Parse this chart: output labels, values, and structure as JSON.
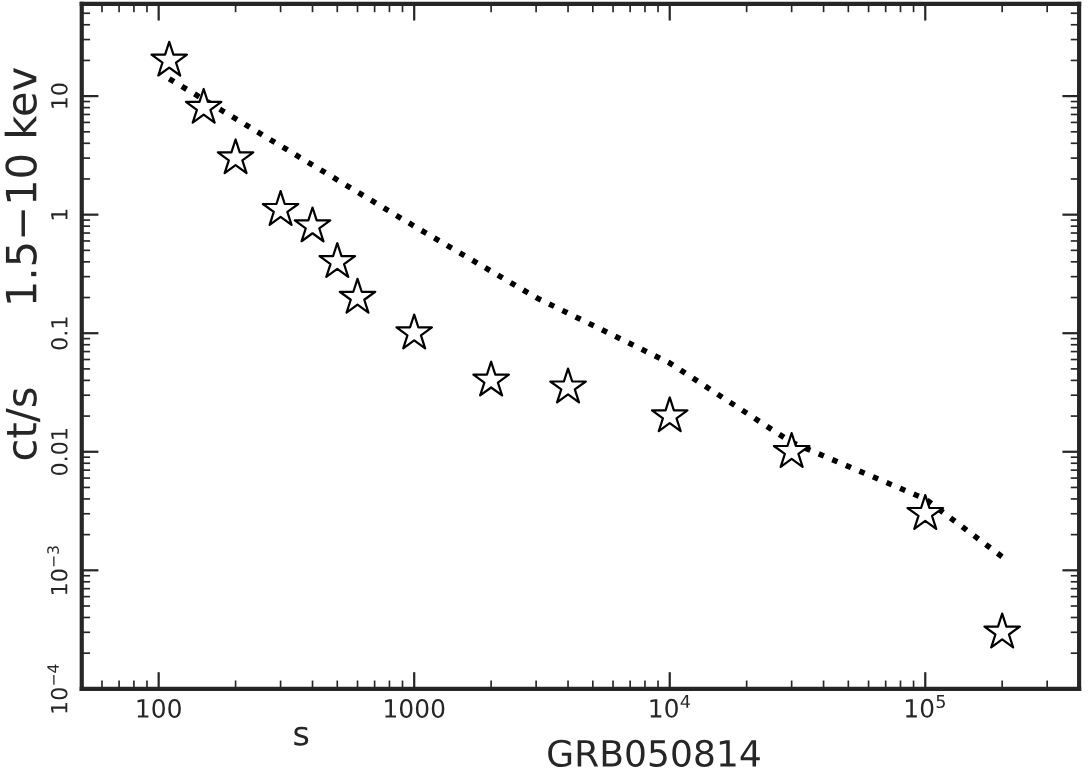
{
  "chart_data": {
    "type": "scatter",
    "xlabel": "s",
    "ylabel": "ct/s      1.5−10 kev",
    "annotations": [
      "GRB050814"
    ],
    "log": "xy",
    "grid": false,
    "legend": false,
    "xlim": [
      50,
      400000
    ],
    "ylim": [
      0.0001,
      60
    ],
    "xticks": [
      100,
      1000,
      {
        "value": 10000,
        "label": "10$^{4}$"
      },
      {
        "value": 100000,
        "label": "10$^{5}$"
      }
    ],
    "yticks": [
      {
        "value": 0.0001,
        "label": "10$^{−4}$"
      },
      {
        "value": 0.001,
        "label": "10$^{−3}$"
      },
      0.01,
      0.1,
      1,
      10
    ],
    "series": [
      {
        "marker": "star",
        "color": "#000000",
        "x": [
          110,
          150,
          200,
          300,
          400,
          500,
          600,
          1000,
          2000,
          4000,
          10000,
          30000,
          100000,
          200000
        ],
        "values": [
          20,
          8,
          3,
          1.1,
          0.8,
          0.4,
          0.2,
          0.1,
          0.04,
          0.035,
          0.02,
          0.01,
          0.003,
          0.0003
        ]
      },
      {
        "type": "line",
        "marker": "none",
        "line_style": "dotted",
        "color": "#000000",
        "x": [
          110,
          1000,
          3000,
          10000,
          30000,
          100000,
          200000
        ],
        "values": [
          14,
          0.8,
          0.2,
          0.056,
          0.012,
          0.004,
          0.0013
        ]
      }
    ]
  }
}
